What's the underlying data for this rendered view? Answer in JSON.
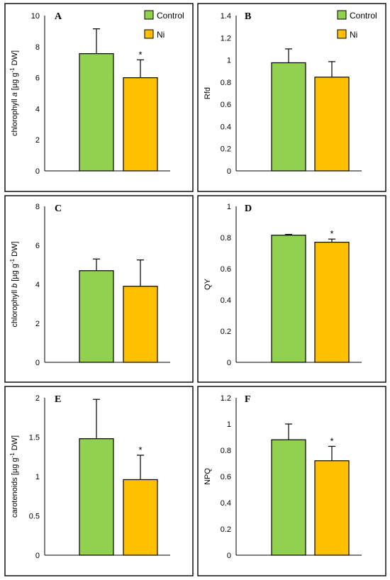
{
  "legend": {
    "control": "Control",
    "ni": "Ni"
  },
  "colors": {
    "control": "#92d050",
    "ni": "#ffc000"
  },
  "significance_mark": "*",
  "chart_data": [
    {
      "type": "bar",
      "panel": "A",
      "ylabel_parts": [
        "chlorophyll ",
        "a",
        " [µg g",
        "-1",
        " DW]"
      ],
      "ylim": [
        0,
        10
      ],
      "ytick_labels": [
        "0",
        "2",
        "4",
        "6",
        "8",
        "10"
      ],
      "series": [
        {
          "name": "Control",
          "value": 7.55,
          "error": 1.6
        },
        {
          "name": "Ni",
          "value": 6.0,
          "error": 1.15
        }
      ],
      "significant": [
        false,
        true
      ],
      "legend_shown": true
    },
    {
      "type": "bar",
      "panel": "B",
      "ylabel_parts": [
        "Rfd"
      ],
      "ylim": [
        0,
        1.4
      ],
      "ytick_labels": [
        "0",
        "0.2",
        "0.4",
        "0.6",
        "0.8",
        "1",
        "1.2",
        "1.4"
      ],
      "series": [
        {
          "name": "Control",
          "value": 0.975,
          "error": 0.125
        },
        {
          "name": "Ni",
          "value": 0.845,
          "error": 0.14
        }
      ],
      "significant": [
        false,
        false
      ],
      "legend_shown": true
    },
    {
      "type": "bar",
      "panel": "C",
      "ylabel_parts": [
        "chlorophyll ",
        "b",
        " [µg g",
        "-1",
        " DW]"
      ],
      "ylim": [
        0,
        8
      ],
      "ytick_labels": [
        "0",
        "2",
        "4",
        "6",
        "8"
      ],
      "series": [
        {
          "name": "Control",
          "value": 4.7,
          "error": 0.6
        },
        {
          "name": "Ni",
          "value": 3.9,
          "error": 1.35
        }
      ],
      "significant": [
        false,
        false
      ],
      "legend_shown": false
    },
    {
      "type": "bar",
      "panel": "D",
      "ylabel_parts": [
        "QY"
      ],
      "ylim": [
        0,
        1
      ],
      "ytick_labels": [
        "0",
        "0.2",
        "0.4",
        "0.6",
        "0.8",
        "1"
      ],
      "series": [
        {
          "name": "Control",
          "value": 0.815,
          "error": 0.005
        },
        {
          "name": "Ni",
          "value": 0.77,
          "error": 0.02
        }
      ],
      "significant": [
        false,
        true
      ],
      "legend_shown": false
    },
    {
      "type": "bar",
      "panel": "E",
      "ylabel_parts": [
        "carotenoids [µg g",
        "-1",
        " DW]"
      ],
      "ylim": [
        0,
        2
      ],
      "ytick_labels": [
        "0",
        "0.5",
        "1",
        "1.5",
        "2"
      ],
      "series": [
        {
          "name": "Control",
          "value": 1.48,
          "error": 0.5
        },
        {
          "name": "Ni",
          "value": 0.96,
          "error": 0.31
        }
      ],
      "significant": [
        false,
        true
      ],
      "legend_shown": false
    },
    {
      "type": "bar",
      "panel": "F",
      "ylabel_parts": [
        "NPQ"
      ],
      "ylim": [
        0,
        1.2
      ],
      "ytick_labels": [
        "0",
        "0.2",
        "0.4",
        "0.6",
        "0.8",
        "1",
        "1.2"
      ],
      "series": [
        {
          "name": "Control",
          "value": 0.88,
          "error": 0.12
        },
        {
          "name": "Ni",
          "value": 0.72,
          "error": 0.11
        }
      ],
      "significant": [
        false,
        true
      ],
      "legend_shown": false
    }
  ]
}
